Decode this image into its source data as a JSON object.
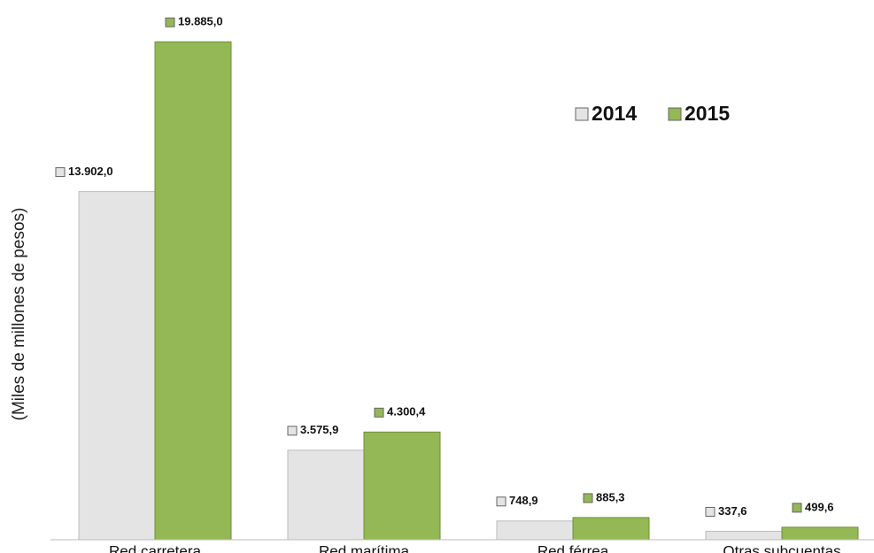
{
  "chart_data": {
    "type": "bar",
    "y_label": "(Miles de millones de pesos)",
    "categories": [
      "Red carretera",
      "Red marítima",
      "Red férrea",
      "Otras subcuentas"
    ],
    "series": [
      {
        "name": "2014",
        "color": "#e4e4e4",
        "values": [
          13902.0,
          3575.9,
          748.9,
          337.6
        ],
        "value_labels": [
          "13.902,0",
          "3.575,9",
          "748,9",
          "337,6"
        ]
      },
      {
        "name": "2015",
        "color": "#94b855",
        "values": [
          19885.0,
          4300.4,
          885.3,
          499.6
        ],
        "value_labels": [
          "19.885,0",
          "4.300,4",
          "885,3",
          "499,6"
        ]
      }
    ],
    "ylim": [
      0,
      20000
    ]
  }
}
